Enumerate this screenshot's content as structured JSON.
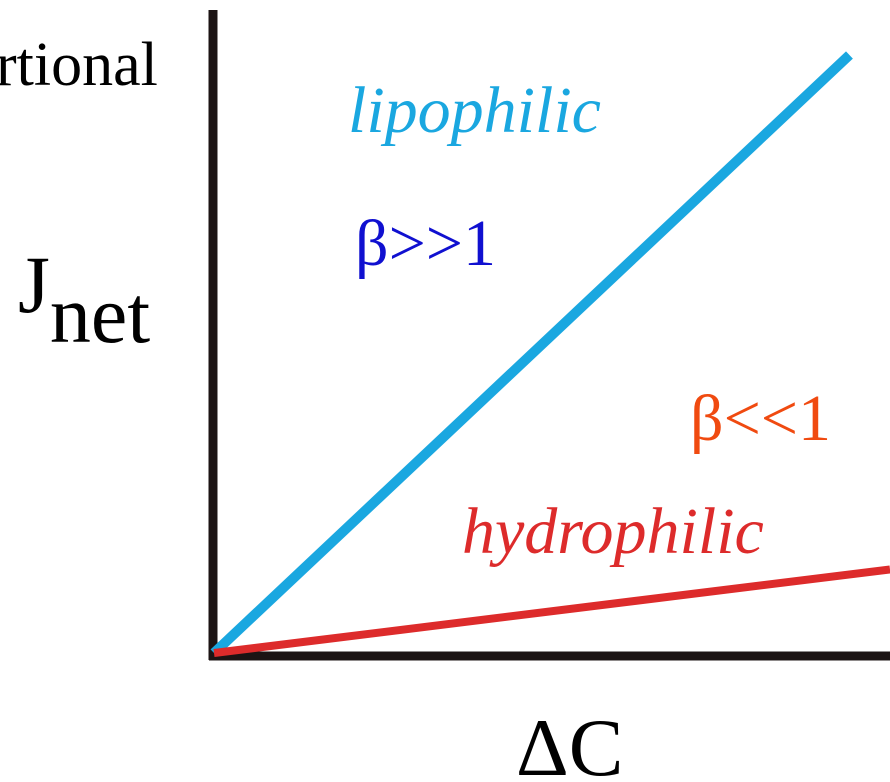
{
  "chart_data": {
    "type": "line",
    "title_fragment": "rtional",
    "xlabel": "ΔC",
    "ylabel": {
      "main": "J",
      "subscript": "net"
    },
    "xlim": [
      0,
      1
    ],
    "ylim": [
      0,
      1
    ],
    "grid": false,
    "series": [
      {
        "name": "lipophilic",
        "label": "lipophilic",
        "beta_label": "β>>1",
        "color": "#1aa7e0",
        "beta_color": "#1010d0",
        "x": [
          0,
          0.94
        ],
        "y": [
          0,
          0.93
        ]
      },
      {
        "name": "hydrophilic",
        "label": "hydrophilic",
        "beta_label": "β<<1",
        "color": "#dd2b2b",
        "beta_color": "#f04a10",
        "x": [
          0,
          1
        ],
        "y": [
          0,
          0.13
        ]
      }
    ]
  }
}
